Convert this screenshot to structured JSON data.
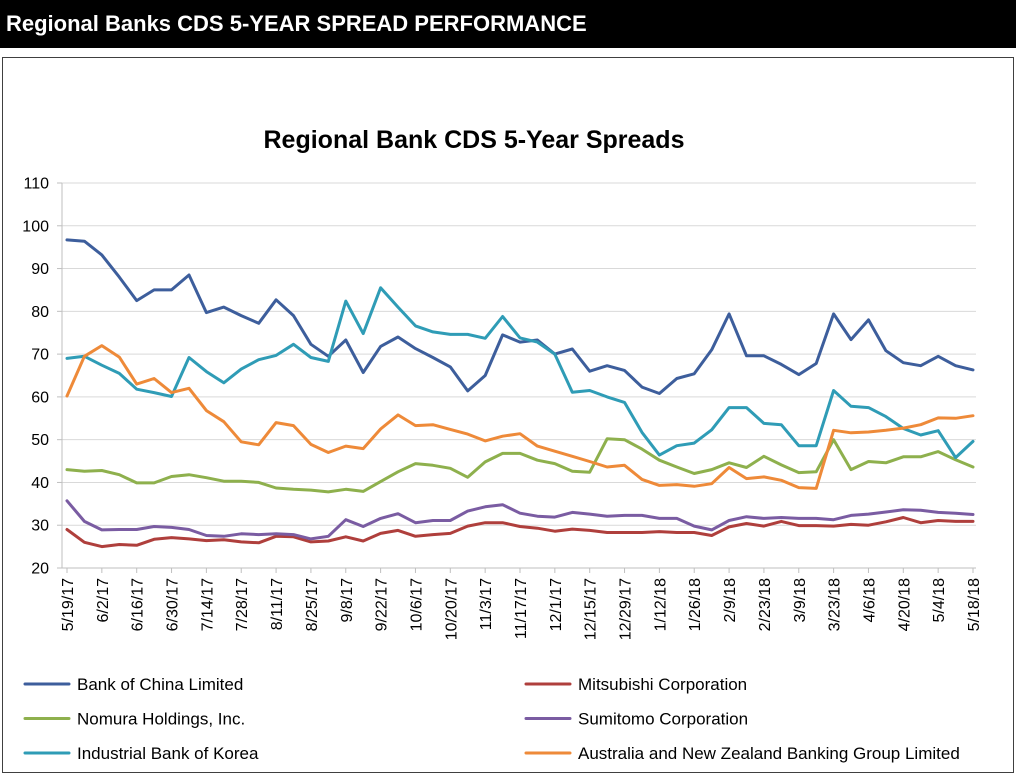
{
  "header": {
    "title": "Regional Banks CDS 5-YEAR SPREAD PERFORMANCE",
    "background": "#000000",
    "text_color": "#FFFFFF"
  },
  "chart_data": {
    "type": "line",
    "x_type": "date",
    "title": "Regional Bank CDS 5-Year Spreads",
    "ylim": [
      20,
      110
    ],
    "yticks": [
      20,
      30,
      40,
      50,
      60,
      70,
      80,
      90,
      100,
      110
    ],
    "grid": {
      "horizontal": true,
      "vertical": false
    },
    "legend_position": "bottom",
    "xticks": [
      "5/19/17",
      "6/2/17",
      "6/16/17",
      "6/30/17",
      "7/14/17",
      "7/28/17",
      "8/11/17",
      "8/25/17",
      "9/8/17",
      "9/22/17",
      "10/6/17",
      "10/20/17",
      "11/3/17",
      "11/17/17",
      "12/1/17",
      "12/15/17",
      "12/29/17",
      "1/12/18",
      "1/26/18",
      "2/9/18",
      "2/23/18",
      "3/9/18",
      "3/23/18",
      "4/6/18",
      "4/20/18",
      "5/4/18",
      "5/18/18"
    ],
    "x": [
      "5/19/17",
      "5/26/17",
      "6/2/17",
      "6/9/17",
      "6/16/17",
      "6/23/17",
      "6/30/17",
      "7/7/17",
      "7/14/17",
      "7/21/17",
      "7/28/17",
      "8/4/17",
      "8/11/17",
      "8/18/17",
      "8/25/17",
      "9/1/17",
      "9/8/17",
      "9/15/17",
      "9/22/17",
      "9/29/17",
      "10/6/17",
      "10/13/17",
      "10/20/17",
      "10/27/17",
      "11/3/17",
      "11/10/17",
      "11/17/17",
      "11/24/17",
      "12/1/17",
      "12/8/17",
      "12/15/17",
      "12/22/17",
      "12/29/17",
      "1/5/18",
      "1/12/18",
      "1/19/18",
      "1/26/18",
      "2/2/18",
      "2/9/18",
      "2/16/18",
      "2/23/18",
      "3/2/18",
      "3/9/18",
      "3/16/18",
      "3/23/18",
      "3/30/18",
      "4/6/18",
      "4/13/18",
      "4/20/18",
      "4/27/18",
      "5/4/18",
      "5/11/18",
      "5/18/18"
    ],
    "series": [
      {
        "name": "Bank of China Limited",
        "color": "#3D5E9C",
        "values": [
          96.7,
          96.4,
          93.2,
          88.0,
          82.5,
          85.0,
          85.0,
          88.5,
          79.7,
          81.0,
          79.0,
          77.2,
          82.7,
          79.0,
          72.3,
          69.5,
          73.3,
          65.7,
          71.8,
          74.0,
          71.3,
          69.2,
          67.0,
          61.4,
          65.0,
          74.5,
          72.8,
          73.3,
          70.0,
          71.2,
          66.0,
          67.3,
          66.2,
          62.3,
          60.8,
          64.3,
          65.4,
          71.0,
          79.4,
          69.6,
          69.6,
          67.6,
          65.2,
          67.8,
          79.4,
          73.4,
          78.0,
          70.8,
          68.0,
          67.3,
          69.5,
          67.3,
          66.3
        ]
      },
      {
        "name": "Mitsubishi Corporation",
        "color": "#AF3F3C",
        "values": [
          29.0,
          26.0,
          25.0,
          25.5,
          25.3,
          26.7,
          27.1,
          26.8,
          26.4,
          26.6,
          26.1,
          25.9,
          27.4,
          27.3,
          26.1,
          26.3,
          27.3,
          26.3,
          28.1,
          28.8,
          27.4,
          27.8,
          28.1,
          29.8,
          30.6,
          30.6,
          29.7,
          29.3,
          28.6,
          29.1,
          28.8,
          28.3,
          28.3,
          28.3,
          28.5,
          28.3,
          28.3,
          27.6,
          29.6,
          30.4,
          29.8,
          30.9,
          29.9,
          29.9,
          29.8,
          30.2,
          30.0,
          30.8,
          31.8,
          30.6,
          31.1,
          30.9,
          30.9
        ]
      },
      {
        "name": "Nomura Holdings, Inc.",
        "color": "#8EB04D",
        "values": [
          43.0,
          42.6,
          42.8,
          41.8,
          39.9,
          39.9,
          41.4,
          41.8,
          41.1,
          40.3,
          40.3,
          40.0,
          38.7,
          38.4,
          38.2,
          37.8,
          38.4,
          37.9,
          40.2,
          42.5,
          44.4,
          44.0,
          43.3,
          41.2,
          44.8,
          46.8,
          46.8,
          45.2,
          44.4,
          42.6,
          42.4,
          50.2,
          50.0,
          47.8,
          45.2,
          43.6,
          42.1,
          43.0,
          44.6,
          43.5,
          46.1,
          44.1,
          42.3,
          42.5,
          50.0,
          43.0,
          44.9,
          44.6,
          46.0,
          46.0,
          47.2,
          45.3,
          43.6
        ]
      },
      {
        "name": "Sumitomo Corporation",
        "color": "#7A5CA2",
        "values": [
          35.7,
          30.9,
          28.9,
          29.0,
          29.0,
          29.7,
          29.5,
          29.0,
          27.6,
          27.4,
          28.0,
          27.8,
          28.0,
          27.8,
          26.8,
          27.4,
          31.3,
          29.7,
          31.6,
          32.7,
          30.6,
          31.1,
          31.1,
          33.3,
          34.3,
          34.8,
          32.8,
          32.1,
          31.9,
          33.0,
          32.6,
          32.1,
          32.3,
          32.3,
          31.6,
          31.6,
          29.8,
          28.9,
          31.1,
          32.0,
          31.6,
          31.8,
          31.6,
          31.6,
          31.3,
          32.3,
          32.6,
          33.1,
          33.6,
          33.5,
          33.0,
          32.8,
          32.5
        ]
      },
      {
        "name": "Industrial Bank of Korea",
        "color": "#2F9CB6",
        "values": [
          69.0,
          69.5,
          67.4,
          65.5,
          61.8,
          61.0,
          60.1,
          69.2,
          65.9,
          63.3,
          66.5,
          68.7,
          69.7,
          72.3,
          69.2,
          68.3,
          82.4,
          74.8,
          85.5,
          81.0,
          76.6,
          75.2,
          74.6,
          74.6,
          73.7,
          78.8,
          73.8,
          72.8,
          70.0,
          61.1,
          61.5,
          60.0,
          58.7,
          51.7,
          46.4,
          48.6,
          49.2,
          52.3,
          57.5,
          57.5,
          53.8,
          53.5,
          48.6,
          48.6,
          61.5,
          57.8,
          57.5,
          55.4,
          52.6,
          51.1,
          52.1,
          45.8,
          49.6
        ]
      },
      {
        "name": "Australia and New Zealand Banking Group Limited",
        "color": "#EE8A39",
        "values": [
          60.2,
          69.5,
          72.0,
          69.3,
          63.0,
          64.3,
          61.0,
          62.0,
          56.8,
          54.2,
          49.5,
          48.8,
          54.0,
          53.3,
          48.9,
          47.0,
          48.5,
          47.9,
          52.5,
          55.8,
          53.3,
          53.5,
          52.4,
          51.3,
          49.7,
          50.8,
          51.4,
          48.5,
          47.3,
          46.1,
          44.9,
          43.6,
          44.0,
          40.7,
          39.3,
          39.5,
          39.1,
          39.7,
          43.5,
          40.9,
          41.3,
          40.5,
          38.8,
          38.6,
          52.2,
          51.6,
          51.8,
          52.2,
          52.7,
          53.5,
          55.1,
          55.0,
          55.6
        ]
      }
    ]
  }
}
